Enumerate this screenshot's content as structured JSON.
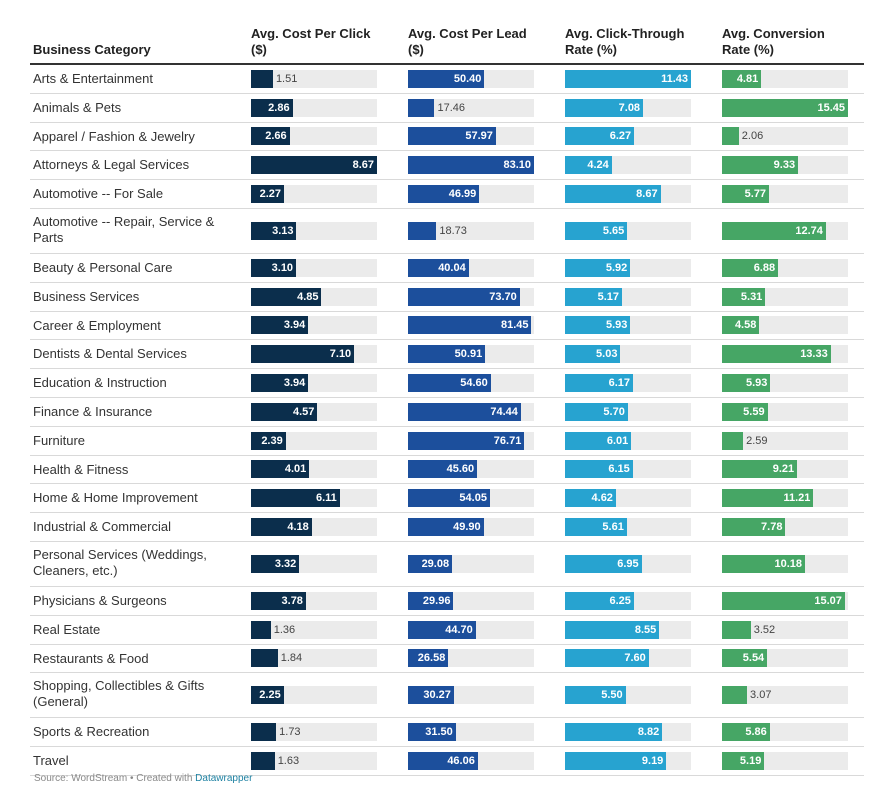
{
  "chart_data": {
    "type": "table",
    "columns": [
      {
        "key": "category",
        "label": "Business Category"
      },
      {
        "key": "cpc",
        "label": "Avg. Cost Per Click ($)",
        "line1": "Avg. Cost Per Click",
        "line2": "($)",
        "max": 8.67,
        "color": "#0b2e4c"
      },
      {
        "key": "cpl",
        "label": "Avg. Cost Per Lead ($)",
        "line1": "Avg. Cost Per Lead",
        "line2": "($)",
        "max": 83.1,
        "color": "#1c4f9c"
      },
      {
        "key": "ctr",
        "label": "Avg. Click-Through Rate (%)",
        "line1": "Avg. Click-Through",
        "line2": "Rate (%)",
        "max": 11.43,
        "color": "#27a3d0"
      },
      {
        "key": "cvr",
        "label": "Avg. Conversion Rate (%)",
        "line1": "Avg. Conversion",
        "line2": "Rate (%)",
        "max": 15.45,
        "color": "#46a665"
      }
    ],
    "rows": [
      {
        "category": "Arts & Entertainment",
        "cpc": "1.51",
        "cpl": "50.40",
        "ctr": "11.43",
        "cvr": "4.81"
      },
      {
        "category": "Animals & Pets",
        "cpc": "2.86",
        "cpl": "17.46",
        "ctr": "7.08",
        "cvr": "15.45"
      },
      {
        "category": "Apparel / Fashion & Jewelry",
        "cpc": "2.66",
        "cpl": "57.97",
        "ctr": "6.27",
        "cvr": "2.06"
      },
      {
        "category": "Attorneys & Legal Services",
        "cpc": "8.67",
        "cpl": "83.10",
        "ctr": "4.24",
        "cvr": "9.33"
      },
      {
        "category": "Automotive -- For Sale",
        "cpc": "2.27",
        "cpl": "46.99",
        "ctr": "8.67",
        "cvr": "5.77"
      },
      {
        "category": "Automotive -- Repair, Service & Parts",
        "cpc": "3.13",
        "cpl": "18.73",
        "ctr": "5.65",
        "cvr": "12.74"
      },
      {
        "category": "Beauty & Personal Care",
        "cpc": "3.10",
        "cpl": "40.04",
        "ctr": "5.92",
        "cvr": "6.88"
      },
      {
        "category": "Business Services",
        "cpc": "4.85",
        "cpl": "73.70",
        "ctr": "5.17",
        "cvr": "5.31"
      },
      {
        "category": "Career & Employment",
        "cpc": "3.94",
        "cpl": "81.45",
        "ctr": "5.93",
        "cvr": "4.58"
      },
      {
        "category": "Dentists & Dental Services",
        "cpc": "7.10",
        "cpl": "50.91",
        "ctr": "5.03",
        "cvr": "13.33"
      },
      {
        "category": "Education & Instruction",
        "cpc": "3.94",
        "cpl": "54.60",
        "ctr": "6.17",
        "cvr": "5.93"
      },
      {
        "category": "Finance & Insurance",
        "cpc": "4.57",
        "cpl": "74.44",
        "ctr": "5.70",
        "cvr": "5.59"
      },
      {
        "category": "Furniture",
        "cpc": "2.39",
        "cpl": "76.71",
        "ctr": "6.01",
        "cvr": "2.59"
      },
      {
        "category": "Health & Fitness",
        "cpc": "4.01",
        "cpl": "45.60",
        "ctr": "6.15",
        "cvr": "9.21"
      },
      {
        "category": "Home & Home Improvement",
        "cpc": "6.11",
        "cpl": "54.05",
        "ctr": "4.62",
        "cvr": "11.21"
      },
      {
        "category": "Industrial & Commercial",
        "cpc": "4.18",
        "cpl": "49.90",
        "ctr": "5.61",
        "cvr": "7.78"
      },
      {
        "category": "Personal Services (Weddings, Cleaners, etc.)",
        "cpc": "3.32",
        "cpl": "29.08",
        "ctr": "6.95",
        "cvr": "10.18"
      },
      {
        "category": "Physicians & Surgeons",
        "cpc": "3.78",
        "cpl": "29.96",
        "ctr": "6.25",
        "cvr": "15.07"
      },
      {
        "category": "Real Estate",
        "cpc": "1.36",
        "cpl": "44.70",
        "ctr": "8.55",
        "cvr": "3.52"
      },
      {
        "category": "Restaurants & Food",
        "cpc": "1.84",
        "cpl": "26.58",
        "ctr": "7.60",
        "cvr": "5.54"
      },
      {
        "category": "Shopping, Collectibles & Gifts (General)",
        "cpc": "2.25",
        "cpl": "30.27",
        "ctr": "5.50",
        "cvr": "3.07"
      },
      {
        "category": "Sports & Recreation",
        "cpc": "1.73",
        "cpl": "31.50",
        "ctr": "8.82",
        "cvr": "5.86"
      },
      {
        "category": "Travel",
        "cpc": "1.63",
        "cpl": "46.06",
        "ctr": "9.19",
        "cvr": "5.19"
      }
    ]
  },
  "footer": {
    "source": "Source: WordStream • Created with ",
    "link": "Datawrapper"
  }
}
